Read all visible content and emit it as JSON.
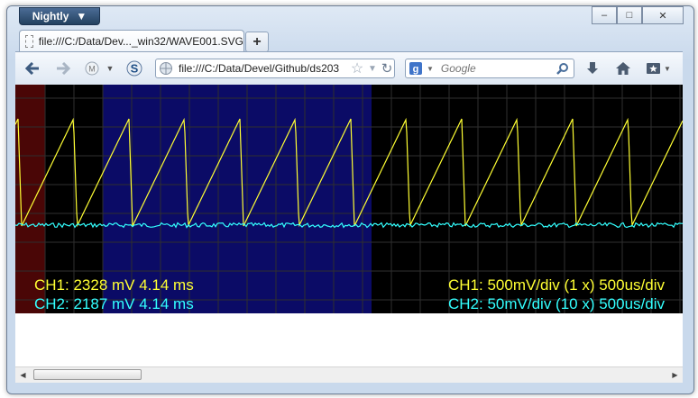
{
  "browser": {
    "app_button_label": "Nightly",
    "tab_title": "file:///C:/Data/Dev..._win32/WAVE001.SVG",
    "new_tab_label": "+",
    "url": "file:///C:/Data/Devel/Github/ds203",
    "search_placeholder": "Google",
    "caption_buttons": {
      "minimize": "–",
      "maximize": "□",
      "close": "✕"
    }
  },
  "scope": {
    "background": "#000000",
    "grid_color": "#2f2f2f",
    "ch1_color": "#ffff33",
    "ch2_color": "#33ffff",
    "region_red": "#4a0606",
    "region_blue": "#0b0b66",
    "readout": {
      "ch1_left": "CH1: 2328 mV 4.14 ms",
      "ch2_left": "CH2: 2187 mV 4.14 ms",
      "ch1_right": "CH1: 500mV/div (1 x) 500us/div",
      "ch2_right": "CH2: 50mV/div (10 x) 500us/div"
    }
  },
  "icons": {
    "back": "back-arrow-icon",
    "forward": "forward-arrow-icon",
    "home": "home-icon",
    "download": "download-icon",
    "bookmarks": "bookmarks-icon"
  }
}
